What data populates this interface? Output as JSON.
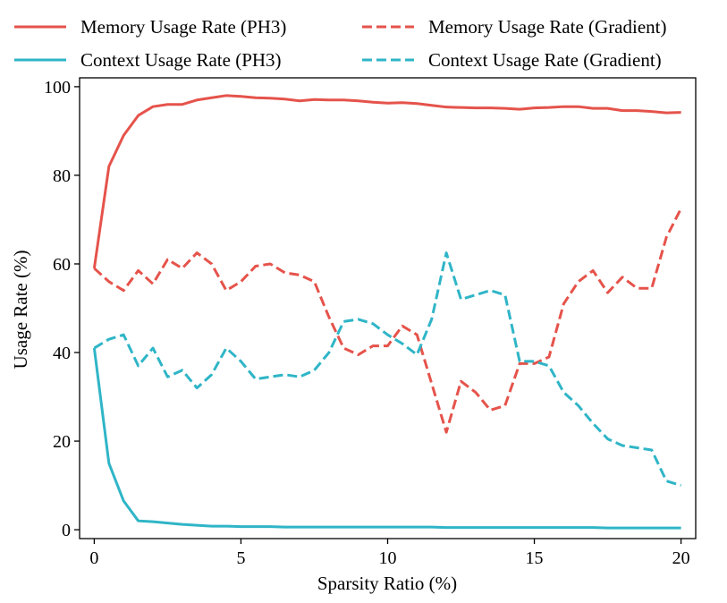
{
  "chart_data": {
    "type": "line",
    "title": "",
    "xlabel": "Sparsity Ratio (%)",
    "ylabel": "Usage Rate (%)",
    "xlim": [
      -0.5,
      20.5
    ],
    "ylim": [
      -2,
      102
    ],
    "xticks": [
      0,
      5,
      10,
      15,
      20
    ],
    "yticks": [
      0,
      20,
      40,
      60,
      80,
      100
    ],
    "grid": false,
    "legend_position": "top",
    "x": [
      0,
      0.5,
      1,
      1.5,
      2,
      2.5,
      3,
      3.5,
      4,
      4.5,
      5,
      5.5,
      6,
      6.5,
      7,
      7.5,
      8,
      8.5,
      9,
      9.5,
      10,
      10.5,
      11,
      11.5,
      12,
      12.5,
      13,
      13.5,
      14,
      14.5,
      15,
      15.5,
      16,
      16.5,
      17,
      17.5,
      18,
      18.5,
      19,
      19.5,
      20
    ],
    "series": [
      {
        "name": "Memory Usage Rate (PH3)",
        "color": "#e5534b",
        "style": "solid",
        "values": [
          59,
          82,
          89,
          93.5,
          95.5,
          96,
          96,
          97,
          97.5,
          98,
          97.8,
          97.5,
          97.4,
          97.2,
          96.8,
          97.1,
          97,
          97,
          96.8,
          96.5,
          96.3,
          96.4,
          96.2,
          95.8,
          95.4,
          95.3,
          95.2,
          95.2,
          95.1,
          94.9,
          95.2,
          95.3,
          95.5,
          95.5,
          95.1,
          95.1,
          94.6,
          94.6,
          94.4,
          94.1,
          94.2
        ]
      },
      {
        "name": "Context Usage Rate (PH3)",
        "color": "#2fb5c7",
        "style": "solid",
        "values": [
          41,
          15,
          6.5,
          2,
          1.8,
          1.5,
          1.2,
          1,
          0.8,
          0.8,
          0.7,
          0.7,
          0.7,
          0.6,
          0.6,
          0.6,
          0.6,
          0.6,
          0.6,
          0.6,
          0.6,
          0.6,
          0.6,
          0.6,
          0.5,
          0.5,
          0.5,
          0.5,
          0.5,
          0.5,
          0.5,
          0.5,
          0.5,
          0.5,
          0.5,
          0.4,
          0.4,
          0.4,
          0.4,
          0.4,
          0.4
        ]
      },
      {
        "name": "Memory Usage Rate (Gradient)",
        "color": "#e5534b",
        "style": "dashed",
        "values": [
          59,
          56,
          54,
          58.5,
          55.5,
          61,
          59,
          62.5,
          60,
          54,
          56,
          59.5,
          60,
          58,
          57.5,
          56,
          48,
          41,
          39.5,
          41.5,
          41.5,
          46,
          44,
          33,
          22,
          33.5,
          31,
          27,
          28,
          37.5,
          37.5,
          39,
          51,
          56,
          58.5,
          53.5,
          57,
          54.5,
          54.5,
          66,
          72.5
        ]
      },
      {
        "name": "Context Usage Rate (Gradient)",
        "color": "#2fb5c7",
        "style": "dashed",
        "values": [
          41,
          43,
          44,
          37,
          41,
          34.5,
          36,
          32,
          35,
          41,
          38,
          34,
          34.5,
          35,
          34.5,
          36,
          40,
          47,
          47.5,
          46.5,
          44,
          42,
          39.5,
          47.5,
          62.5,
          52,
          53,
          54,
          53,
          38,
          38,
          37,
          31,
          28,
          24,
          20.5,
          19,
          18.5,
          18,
          11,
          10
        ]
      }
    ]
  }
}
